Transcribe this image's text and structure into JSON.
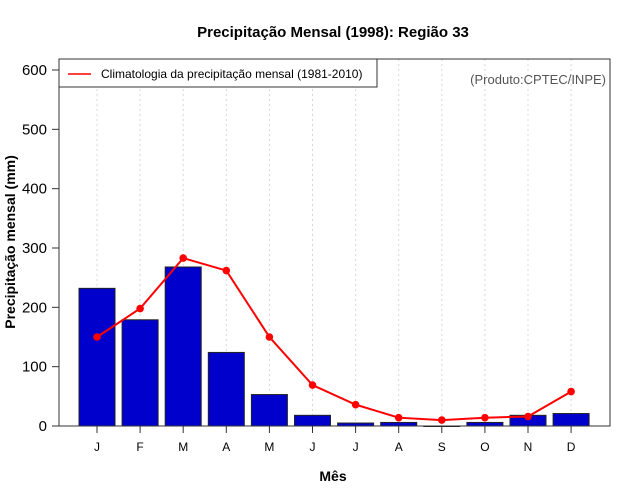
{
  "chart_data": {
    "type": "bar",
    "title": "Precipitação Mensal (1998): Região 33",
    "xlabel": "Mês",
    "ylabel": "Precipitação mensal (mm)",
    "ylim": [
      0,
      600
    ],
    "yticks": [
      0,
      100,
      200,
      300,
      400,
      500,
      600
    ],
    "categories": [
      "J",
      "F",
      "M",
      "A",
      "M",
      "J",
      "J",
      "A",
      "S",
      "O",
      "N",
      "D"
    ],
    "grid": "vertical dotted",
    "legend_position": "top-left",
    "credit": "(Produto:CPTEC/INPE)",
    "series": [
      {
        "name": "Precipitação mensal 1998",
        "type": "bar",
        "color": "#0000cd",
        "values": [
          232,
          179,
          268,
          124,
          53,
          18,
          5,
          6,
          0,
          6,
          18,
          21
        ]
      },
      {
        "name": "Climatologia da precipitação mensal (1981-2010)",
        "type": "line",
        "color": "#ff0000",
        "values": [
          150,
          198,
          283,
          262,
          150,
          69,
          36,
          14,
          10,
          14,
          16,
          58
        ]
      }
    ]
  }
}
